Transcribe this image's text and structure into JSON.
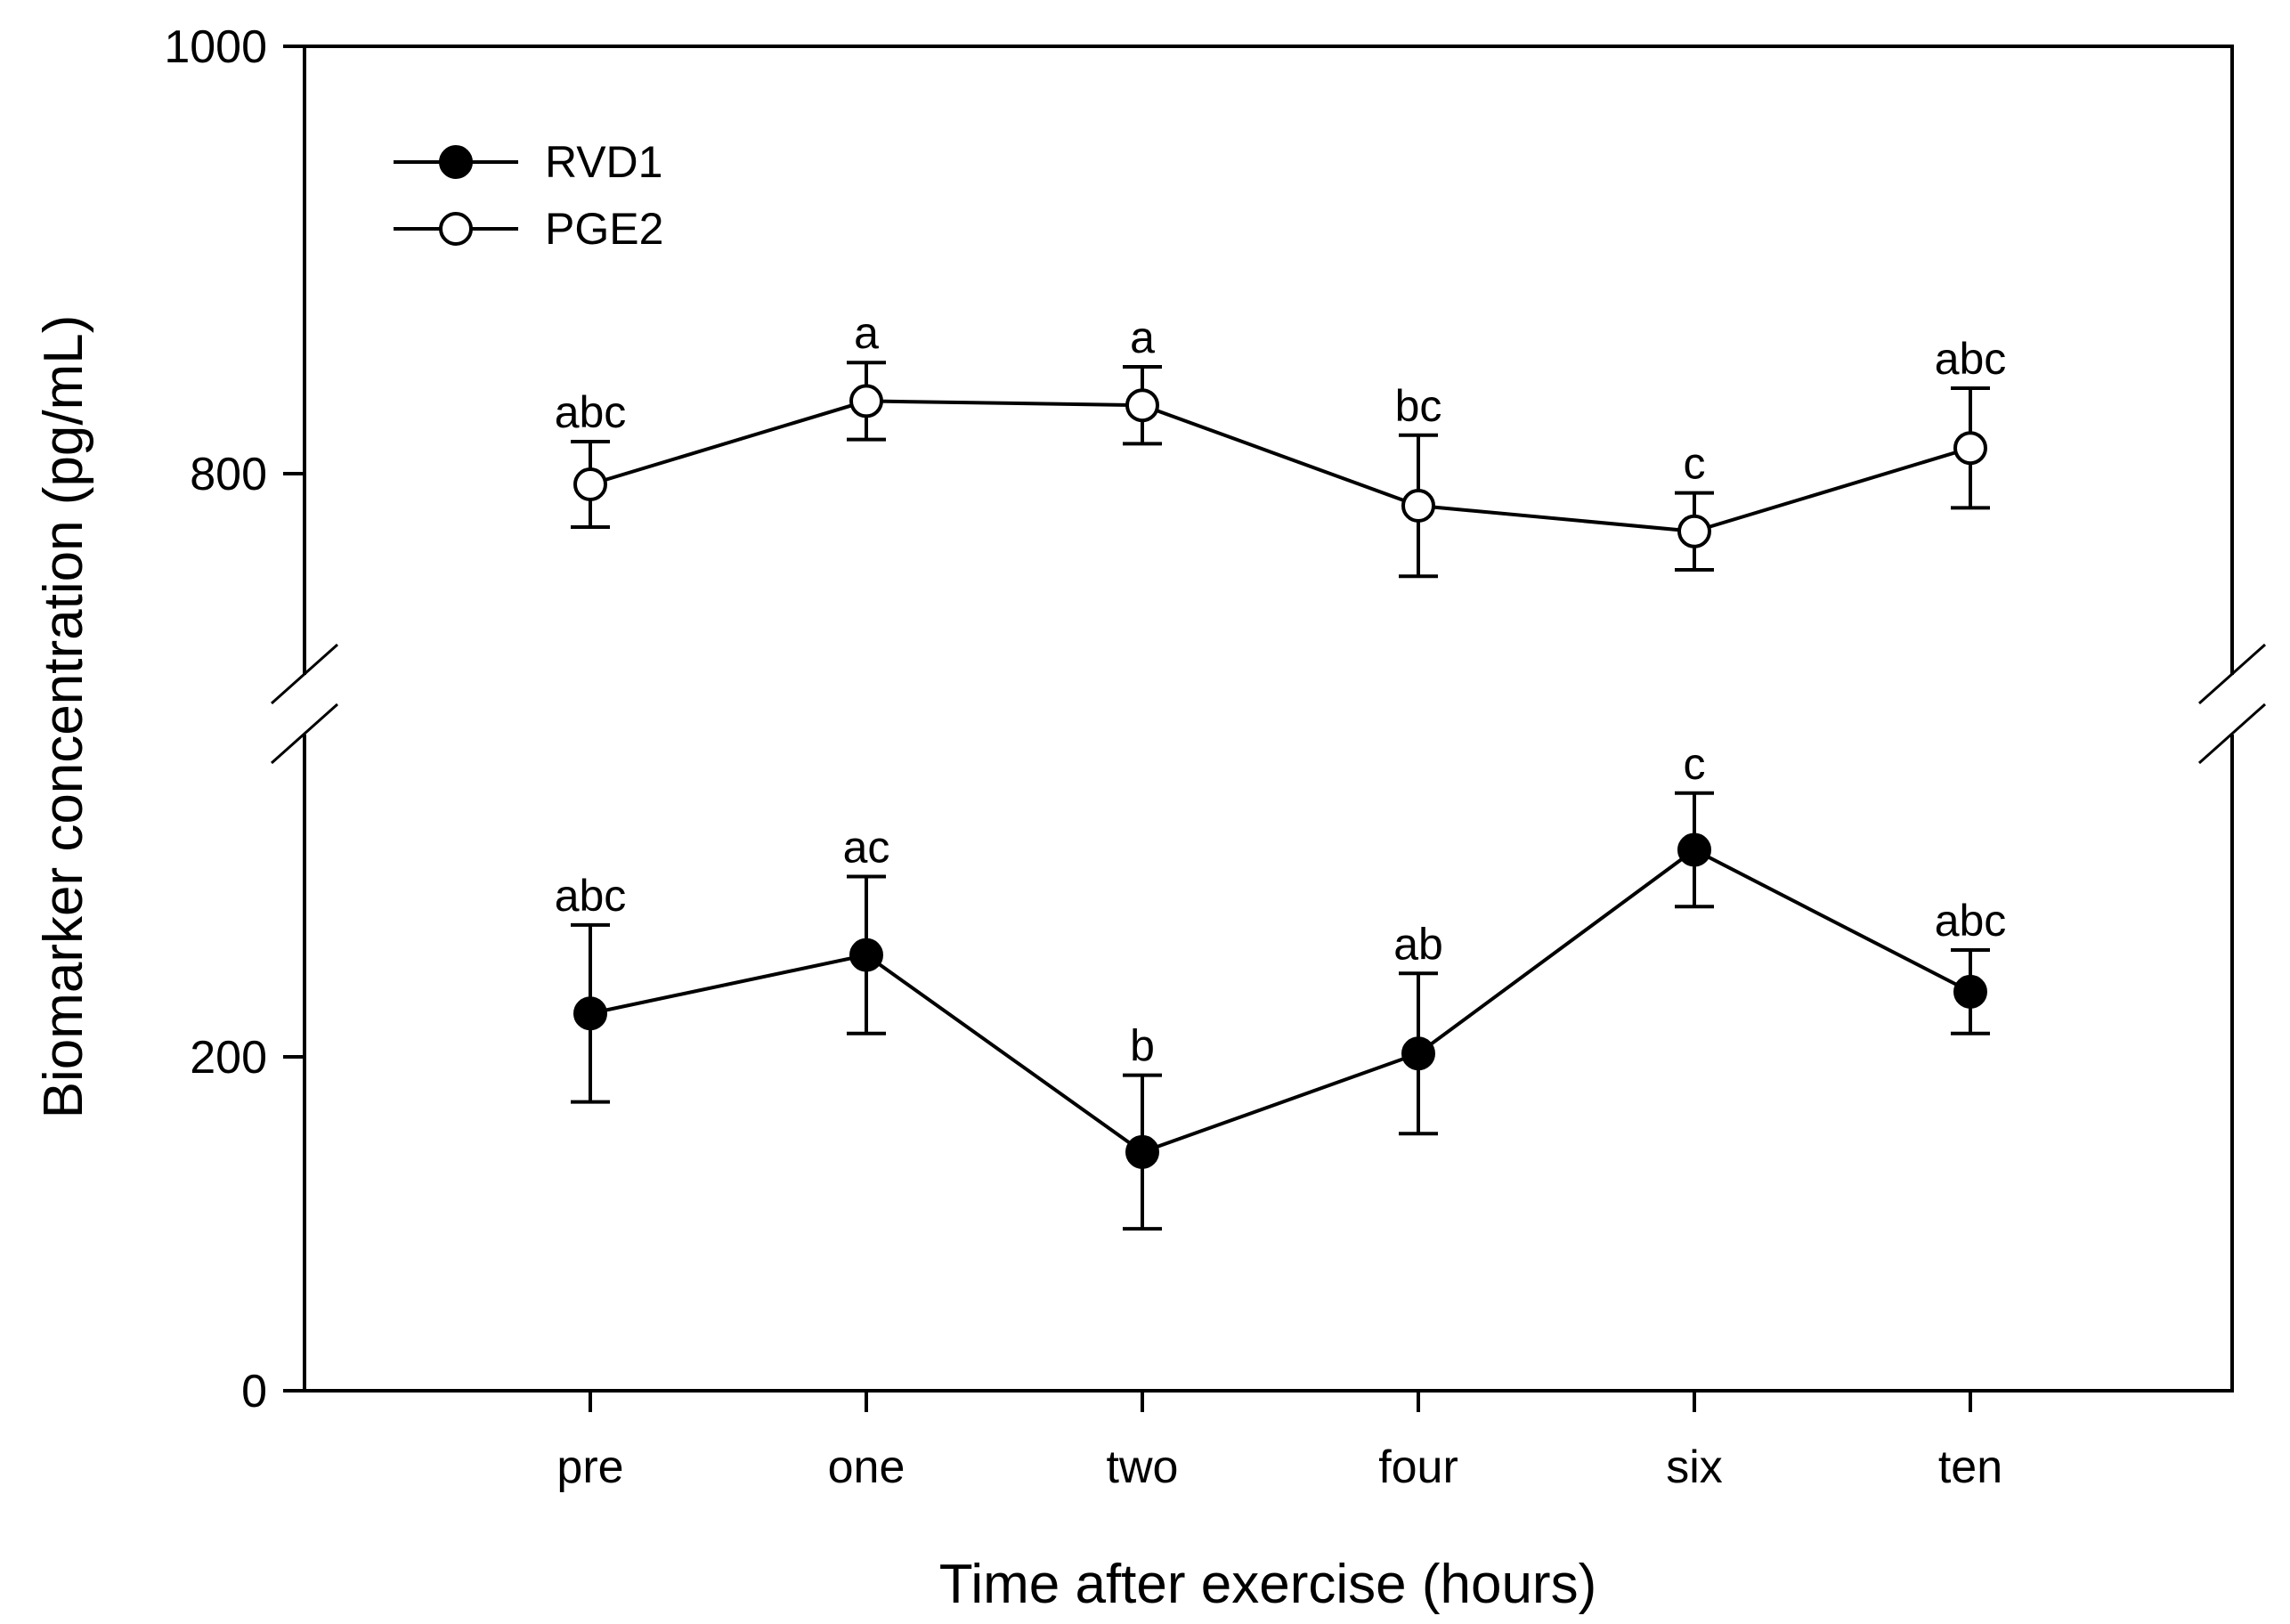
{
  "chart_data": {
    "type": "line",
    "title": "",
    "xlabel": "Time after exercise (hours)",
    "ylabel": "Biomarker concentration (pg/mL)",
    "categories": [
      "pre",
      "one",
      "two",
      "four",
      "six",
      "ten"
    ],
    "axis_break": true,
    "y_segments": [
      {
        "name": "lower",
        "ylim": [
          0,
          400
        ],
        "ticks": [
          0,
          200
        ]
      },
      {
        "name": "upper",
        "ylim": [
          700,
          1000
        ],
        "ticks": [
          800,
          1000
        ]
      }
    ],
    "series": [
      {
        "name": "RVD1",
        "marker": "filled-circle",
        "segment": "lower",
        "values": [
          226,
          261,
          143,
          202,
          324,
          239
        ],
        "error": [
          53,
          47,
          46,
          48,
          34,
          25
        ],
        "labels": [
          "abc",
          "ac",
          "b",
          "ab",
          "c",
          "abc"
        ]
      },
      {
        "name": "PGE2",
        "marker": "open-circle",
        "segment": "upper",
        "values": [
          795,
          834,
          832,
          785,
          773,
          812
        ],
        "error": [
          20,
          18,
          18,
          33,
          18,
          28
        ],
        "labels": [
          "abc",
          "a",
          "a",
          "bc",
          "c",
          "abc"
        ]
      }
    ],
    "legend": {
      "position": "top-left",
      "entries": [
        "RVD1",
        "PGE2"
      ]
    }
  },
  "colors": {
    "line": "#000000",
    "filled_marker": "#000000",
    "open_marker": "#ffffff"
  }
}
